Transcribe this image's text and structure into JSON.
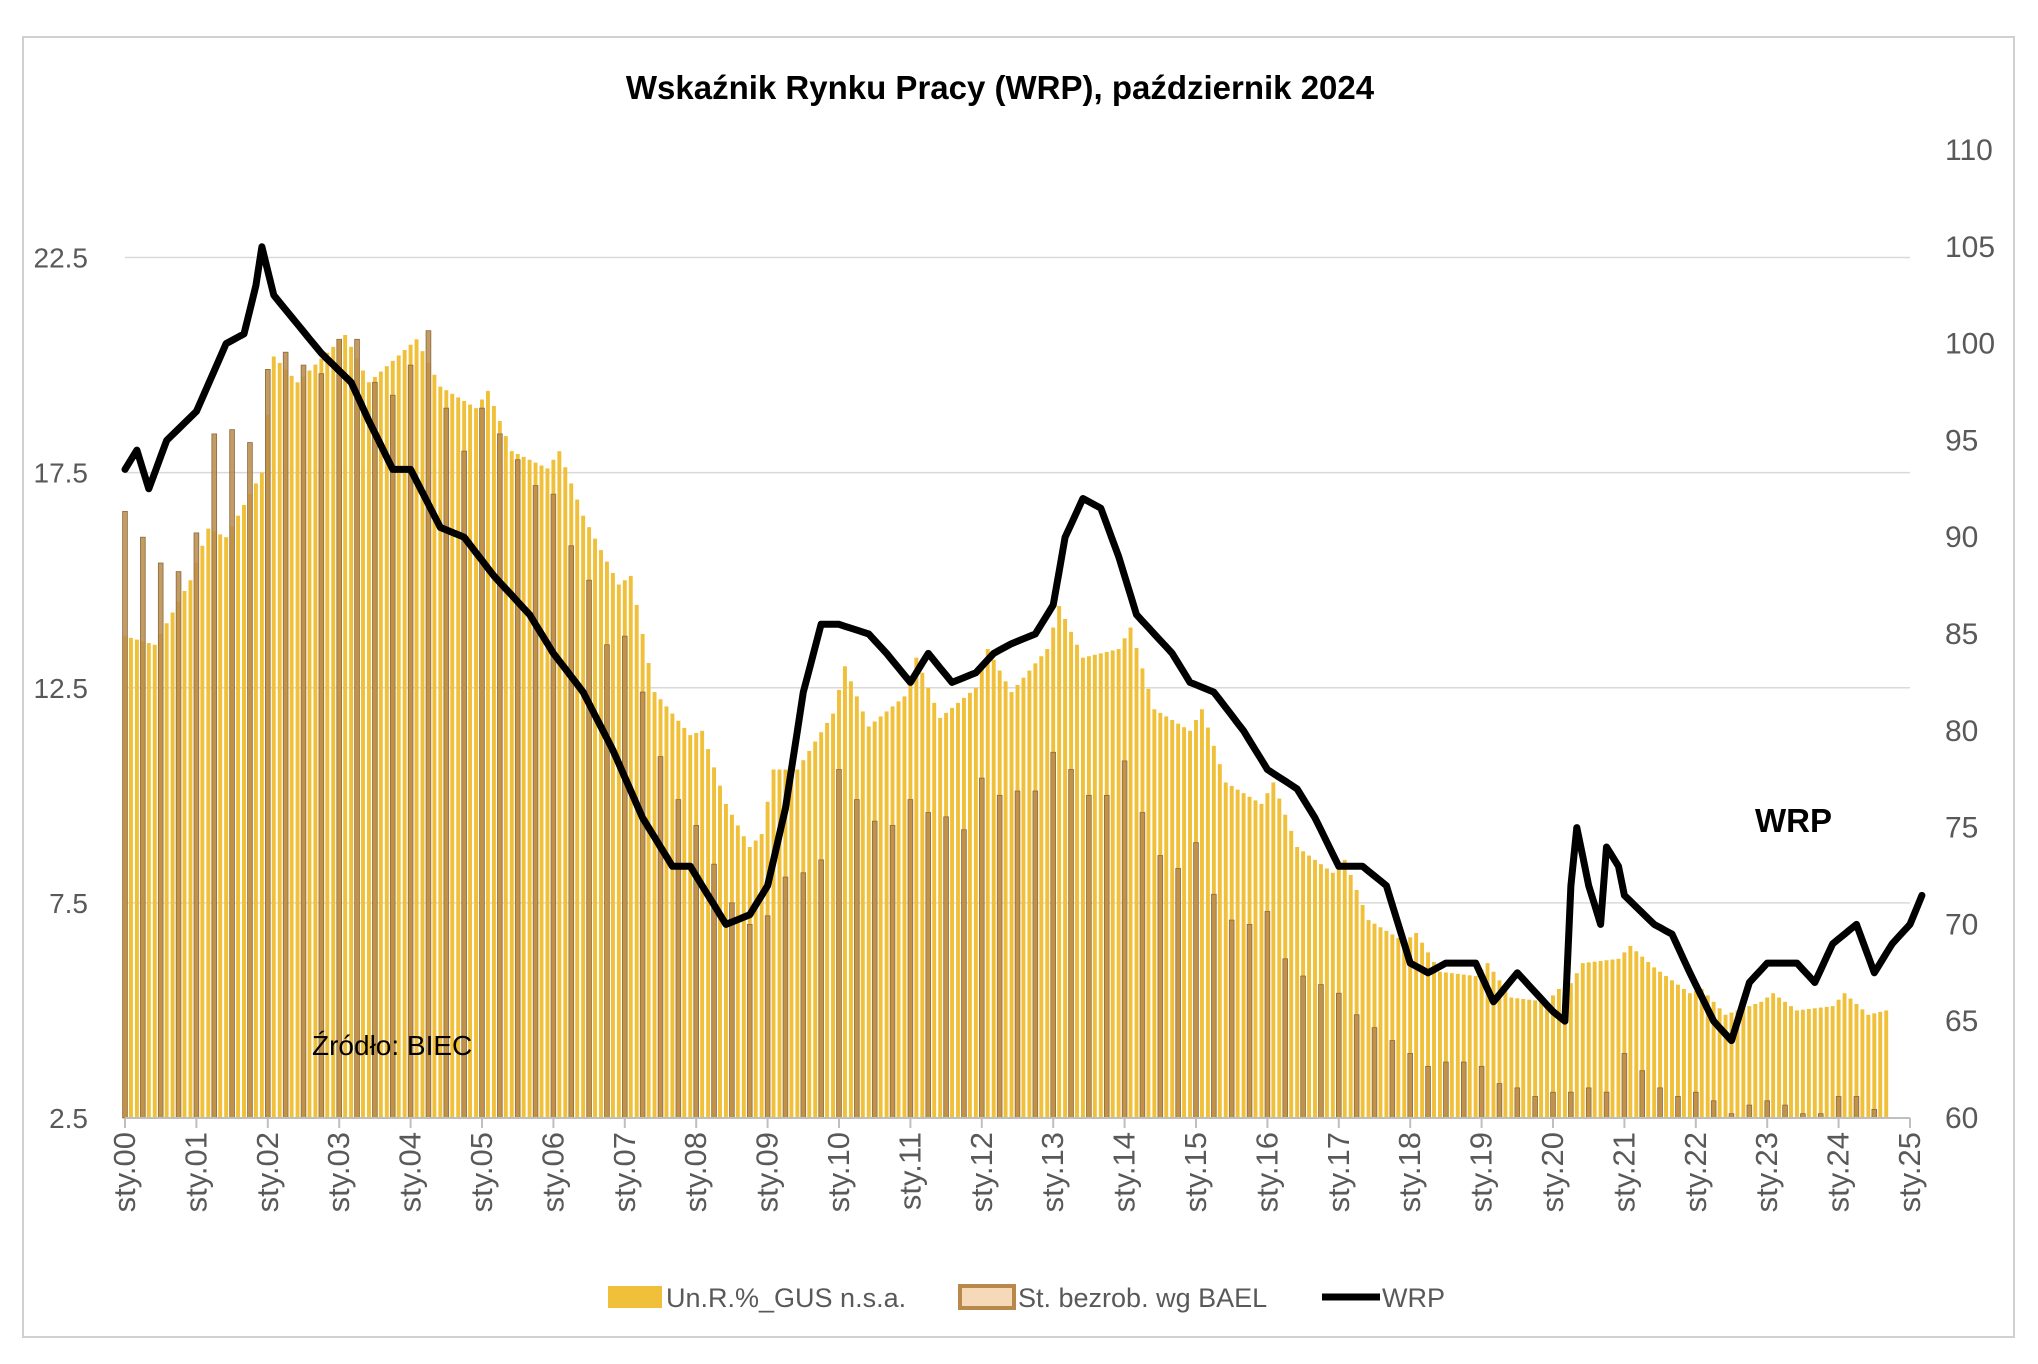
{
  "chart_data": {
    "type": "bar+line",
    "title": "Wskaźnik Rynku Pracy (WRP), październik 2024",
    "source_note": "Źródło: BIEC",
    "line_label": "WRP",
    "x_axis": {
      "tick_labels": [
        "sty.00",
        "sty.01",
        "sty.02",
        "sty.03",
        "sty.04",
        "sty.05",
        "sty.06",
        "sty.07",
        "sty.08",
        "sty.09",
        "sty.10",
        "sty.11",
        "sty.12",
        "sty.13",
        "sty.14",
        "sty.15",
        "sty.16",
        "sty.17",
        "sty.18",
        "sty.19",
        "sty.20",
        "sty.21",
        "sty.22",
        "sty.23",
        "sty.24",
        "sty.25"
      ],
      "range": [
        "2000-01",
        "2025-01"
      ]
    },
    "y_left": {
      "range": [
        2.5,
        25
      ],
      "ticks": [
        2.5,
        7.5,
        12.5,
        17.5,
        22.5
      ],
      "grid": true
    },
    "y_right": {
      "range": [
        60,
        110
      ],
      "ticks": [
        60,
        65,
        70,
        75,
        80,
        85,
        90,
        95,
        100,
        105,
        110
      ]
    },
    "legend": {
      "placement": "bottom",
      "items": [
        "Un.R.%_GUS n.s.a.",
        "St. bezrob. wg BAEL",
        "WRP"
      ]
    },
    "colors": {
      "gus": "#F0C03A",
      "bael": "#B8894A",
      "bael_edge": "#8C6A3A",
      "wrp": "#000000",
      "grid": "#d9d9d9",
      "text": "#595959"
    },
    "series": [
      {
        "name": "Un.R.%_GUS n.s.a.",
        "axis": "left",
        "kind": "bar",
        "frequency": "monthly",
        "anchors": [
          [
            "2000-01",
            13.7
          ],
          [
            "2000-06",
            13.5
          ],
          [
            "2000-12",
            15.0
          ],
          [
            "2001-03",
            16.2
          ],
          [
            "2001-06",
            16.0
          ],
          [
            "2001-12",
            17.5
          ],
          [
            "2002-02",
            20.2
          ],
          [
            "2002-06",
            19.6
          ],
          [
            "2003-02",
            20.7
          ],
          [
            "2003-06",
            19.6
          ],
          [
            "2004-02",
            20.6
          ],
          [
            "2004-06",
            19.5
          ],
          [
            "2004-12",
            19.0
          ],
          [
            "2005-02",
            19.4
          ],
          [
            "2005-06",
            18.0
          ],
          [
            "2005-12",
            17.6
          ],
          [
            "2006-02",
            18.0
          ],
          [
            "2006-06",
            16.5
          ],
          [
            "2006-12",
            14.9
          ],
          [
            "2007-02",
            15.1
          ],
          [
            "2007-06",
            12.4
          ],
          [
            "2007-12",
            11.4
          ],
          [
            "2008-02",
            11.5
          ],
          [
            "2008-06",
            9.8
          ],
          [
            "2008-10",
            8.8
          ],
          [
            "2008-12",
            9.1
          ],
          [
            "2009-02",
            10.6
          ],
          [
            "2009-06",
            10.6
          ],
          [
            "2009-12",
            11.9
          ],
          [
            "2010-02",
            13.0
          ],
          [
            "2010-06",
            11.6
          ],
          [
            "2010-12",
            12.3
          ],
          [
            "2011-02",
            13.2
          ],
          [
            "2011-06",
            11.8
          ],
          [
            "2011-12",
            12.5
          ],
          [
            "2012-02",
            13.4
          ],
          [
            "2012-06",
            12.4
          ],
          [
            "2012-12",
            13.4
          ],
          [
            "2013-02",
            14.4
          ],
          [
            "2013-06",
            13.2
          ],
          [
            "2013-12",
            13.4
          ],
          [
            "2014-02",
            13.9
          ],
          [
            "2014-06",
            12.0
          ],
          [
            "2014-12",
            11.5
          ],
          [
            "2015-02",
            12.0
          ],
          [
            "2015-06",
            10.3
          ],
          [
            "2015-12",
            9.8
          ],
          [
            "2016-02",
            10.3
          ],
          [
            "2016-06",
            8.8
          ],
          [
            "2016-12",
            8.2
          ],
          [
            "2017-02",
            8.5
          ],
          [
            "2017-06",
            7.1
          ],
          [
            "2017-12",
            6.6
          ],
          [
            "2018-02",
            6.8
          ],
          [
            "2018-06",
            5.9
          ],
          [
            "2018-12",
            5.8
          ],
          [
            "2019-02",
            6.1
          ],
          [
            "2019-06",
            5.3
          ],
          [
            "2019-12",
            5.2
          ],
          [
            "2020-02",
            5.5
          ],
          [
            "2020-03",
            5.4
          ],
          [
            "2020-06",
            6.1
          ],
          [
            "2020-12",
            6.2
          ],
          [
            "2021-02",
            6.5
          ],
          [
            "2021-06",
            6.0
          ],
          [
            "2021-12",
            5.4
          ],
          [
            "2022-02",
            5.5
          ],
          [
            "2022-06",
            4.9
          ],
          [
            "2022-12",
            5.2
          ],
          [
            "2023-02",
            5.4
          ],
          [
            "2023-06",
            5.0
          ],
          [
            "2023-12",
            5.1
          ],
          [
            "2024-02",
            5.4
          ],
          [
            "2024-06",
            4.9
          ],
          [
            "2024-09",
            5.0
          ]
        ]
      },
      {
        "name": "St. bezrob. wg BAEL",
        "axis": "left",
        "kind": "bar",
        "frequency": "quarterly",
        "anchors": [
          [
            "2000-01",
            16.6
          ],
          [
            "2000-04",
            16.0
          ],
          [
            "2000-07",
            15.4
          ],
          [
            "2000-10",
            15.2
          ],
          [
            "2001-01",
            16.1
          ],
          [
            "2001-04",
            18.4
          ],
          [
            "2001-07",
            18.5
          ],
          [
            "2001-10",
            18.2
          ],
          [
            "2002-01",
            19.9
          ],
          [
            "2002-04",
            20.3
          ],
          [
            "2002-07",
            20.0
          ],
          [
            "2002-10",
            19.8
          ],
          [
            "2003-01",
            20.6
          ],
          [
            "2003-04",
            20.6
          ],
          [
            "2003-07",
            19.6
          ],
          [
            "2003-10",
            19.3
          ],
          [
            "2004-01",
            20.0
          ],
          [
            "2004-04",
            20.8
          ],
          [
            "2004-07",
            19.0
          ],
          [
            "2004-10",
            18.0
          ],
          [
            "2005-01",
            19.0
          ],
          [
            "2005-04",
            18.4
          ],
          [
            "2005-07",
            17.8
          ],
          [
            "2005-10",
            17.2
          ],
          [
            "2006-01",
            17.0
          ],
          [
            "2006-04",
            15.8
          ],
          [
            "2006-07",
            15.0
          ],
          [
            "2006-10",
            13.5
          ],
          [
            "2007-01",
            13.7
          ],
          [
            "2007-04",
            12.4
          ],
          [
            "2007-07",
            10.9
          ],
          [
            "2007-10",
            9.9
          ],
          [
            "2008-01",
            9.3
          ],
          [
            "2008-04",
            8.4
          ],
          [
            "2008-07",
            7.5
          ],
          [
            "2008-10",
            7.0
          ],
          [
            "2009-01",
            7.2
          ],
          [
            "2009-04",
            8.1
          ],
          [
            "2009-07",
            8.2
          ],
          [
            "2009-10",
            8.5
          ],
          [
            "2010-01",
            10.6
          ],
          [
            "2010-04",
            9.9
          ],
          [
            "2010-07",
            9.4
          ],
          [
            "2010-10",
            9.3
          ],
          [
            "2011-01",
            9.9
          ],
          [
            "2011-04",
            9.6
          ],
          [
            "2011-07",
            9.5
          ],
          [
            "2011-10",
            9.2
          ],
          [
            "2012-01",
            10.4
          ],
          [
            "2012-04",
            10.0
          ],
          [
            "2012-07",
            10.1
          ],
          [
            "2012-10",
            10.1
          ],
          [
            "2013-01",
            11.0
          ],
          [
            "2013-04",
            10.6
          ],
          [
            "2013-07",
            10.0
          ],
          [
            "2013-10",
            10.0
          ],
          [
            "2014-01",
            10.8
          ],
          [
            "2014-04",
            9.6
          ],
          [
            "2014-07",
            8.6
          ],
          [
            "2014-10",
            8.3
          ],
          [
            "2015-01",
            8.9
          ],
          [
            "2015-04",
            7.7
          ],
          [
            "2015-07",
            7.1
          ],
          [
            "2015-10",
            7.0
          ],
          [
            "2016-01",
            7.3
          ],
          [
            "2016-04",
            6.2
          ],
          [
            "2016-07",
            5.8
          ],
          [
            "2016-10",
            5.6
          ],
          [
            "2017-01",
            5.4
          ],
          [
            "2017-04",
            4.9
          ],
          [
            "2017-07",
            4.6
          ],
          [
            "2017-10",
            4.3
          ],
          [
            "2018-01",
            4.0
          ],
          [
            "2018-04",
            3.7
          ],
          [
            "2018-07",
            3.8
          ],
          [
            "2018-10",
            3.8
          ],
          [
            "2019-01",
            3.7
          ],
          [
            "2019-04",
            3.3
          ],
          [
            "2019-07",
            3.2
          ],
          [
            "2019-10",
            3.0
          ],
          [
            "2020-01",
            3.1
          ],
          [
            "2020-04",
            3.1
          ],
          [
            "2020-07",
            3.2
          ],
          [
            "2020-10",
            3.1
          ],
          [
            "2021-01",
            4.0
          ],
          [
            "2021-04",
            3.6
          ],
          [
            "2021-07",
            3.2
          ],
          [
            "2021-10",
            3.0
          ],
          [
            "2022-01",
            3.1
          ],
          [
            "2022-04",
            2.9
          ],
          [
            "2022-07",
            2.6
          ],
          [
            "2022-10",
            2.8
          ],
          [
            "2023-01",
            2.9
          ],
          [
            "2023-04",
            2.8
          ],
          [
            "2023-07",
            2.6
          ],
          [
            "2023-10",
            2.6
          ],
          [
            "2024-01",
            3.0
          ],
          [
            "2024-04",
            3.0
          ],
          [
            "2024-07",
            2.7
          ]
        ]
      },
      {
        "name": "WRP",
        "axis": "right",
        "kind": "line",
        "frequency": "monthly",
        "anchors": [
          [
            "2000-01",
            93.5
          ],
          [
            "2000-03",
            94.5
          ],
          [
            "2000-05",
            92.5
          ],
          [
            "2000-08",
            95.0
          ],
          [
            "2001-01",
            96.5
          ],
          [
            "2001-06",
            100.0
          ],
          [
            "2001-09",
            100.5
          ],
          [
            "2001-11",
            103.0
          ],
          [
            "2001-12",
            105.0
          ],
          [
            "2002-02",
            102.5
          ],
          [
            "2002-06",
            101.0
          ],
          [
            "2002-10",
            99.5
          ],
          [
            "2003-03",
            98.0
          ],
          [
            "2003-06",
            96.0
          ],
          [
            "2003-10",
            93.5
          ],
          [
            "2004-01",
            93.5
          ],
          [
            "2004-06",
            90.5
          ],
          [
            "2004-10",
            90.0
          ],
          [
            "2005-03",
            88.0
          ],
          [
            "2005-09",
            86.0
          ],
          [
            "2006-01",
            84.0
          ],
          [
            "2006-06",
            82.0
          ],
          [
            "2006-11",
            79.0
          ],
          [
            "2007-04",
            75.5
          ],
          [
            "2007-09",
            73.0
          ],
          [
            "2007-12",
            73.0
          ],
          [
            "2008-03",
            71.5
          ],
          [
            "2008-06",
            70.0
          ],
          [
            "2008-10",
            70.5
          ],
          [
            "2009-01",
            72.0
          ],
          [
            "2009-04",
            76.0
          ],
          [
            "2009-07",
            82.0
          ],
          [
            "2009-10",
            85.5
          ],
          [
            "2010-01",
            85.5
          ],
          [
            "2010-06",
            85.0
          ],
          [
            "2010-09",
            84.0
          ],
          [
            "2011-01",
            82.5
          ],
          [
            "2011-04",
            84.0
          ],
          [
            "2011-08",
            82.5
          ],
          [
            "2011-12",
            83.0
          ],
          [
            "2012-03",
            84.0
          ],
          [
            "2012-06",
            84.5
          ],
          [
            "2012-10",
            85.0
          ],
          [
            "2013-01",
            86.5
          ],
          [
            "2013-03",
            90.0
          ],
          [
            "2013-06",
            92.0
          ],
          [
            "2013-09",
            91.5
          ],
          [
            "2013-12",
            89.0
          ],
          [
            "2014-03",
            86.0
          ],
          [
            "2014-06",
            85.0
          ],
          [
            "2014-09",
            84.0
          ],
          [
            "2014-12",
            82.5
          ],
          [
            "2015-04",
            82.0
          ],
          [
            "2015-09",
            80.0
          ],
          [
            "2016-01",
            78.0
          ],
          [
            "2016-06",
            77.0
          ],
          [
            "2016-09",
            75.5
          ],
          [
            "2017-01",
            73.0
          ],
          [
            "2017-05",
            73.0
          ],
          [
            "2017-09",
            72.0
          ],
          [
            "2018-01",
            68.0
          ],
          [
            "2018-04",
            67.5
          ],
          [
            "2018-07",
            68.0
          ],
          [
            "2018-12",
            68.0
          ],
          [
            "2019-03",
            66.0
          ],
          [
            "2019-07",
            67.5
          ],
          [
            "2019-10",
            66.5
          ],
          [
            "2020-01",
            65.5
          ],
          [
            "2020-03",
            65.0
          ],
          [
            "2020-04",
            72.0
          ],
          [
            "2020-05",
            75.0
          ],
          [
            "2020-07",
            72.0
          ],
          [
            "2020-09",
            70.0
          ],
          [
            "2020-10",
            74.0
          ],
          [
            "2020-12",
            73.0
          ],
          [
            "2021-01",
            71.5
          ],
          [
            "2021-06",
            70.0
          ],
          [
            "2021-09",
            69.5
          ],
          [
            "2021-12",
            67.5
          ],
          [
            "2022-04",
            65.0
          ],
          [
            "2022-07",
            64.0
          ],
          [
            "2022-10",
            67.0
          ],
          [
            "2023-01",
            68.0
          ],
          [
            "2023-06",
            68.0
          ],
          [
            "2023-09",
            67.0
          ],
          [
            "2023-12",
            69.0
          ],
          [
            "2024-04",
            70.0
          ],
          [
            "2024-07",
            67.5
          ],
          [
            "2024-10",
            69.0
          ],
          [
            "2025-01",
            70.0
          ],
          [
            "2025-03",
            71.5
          ]
        ]
      }
    ]
  }
}
